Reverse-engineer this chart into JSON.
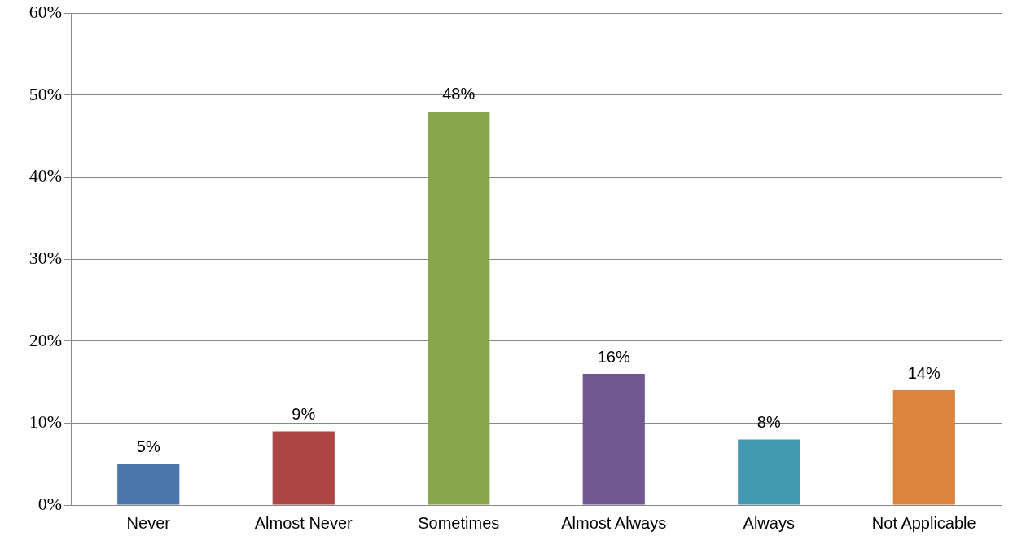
{
  "chart_data": {
    "type": "bar",
    "categories": [
      "Never",
      "Almost Never",
      "Sometimes",
      "Almost Always",
      "Always",
      "Not Applicable"
    ],
    "values": [
      5,
      9,
      48,
      16,
      8,
      14
    ],
    "colors": [
      "#4a76ab",
      "#ab4644",
      "#89a54e",
      "#71588f",
      "#4298af",
      "#db843d"
    ],
    "ylim": [
      0,
      60
    ],
    "yticks": [
      {
        "value": 0,
        "label": "0%"
      },
      {
        "value": 10,
        "label": "10%"
      },
      {
        "value": 20,
        "label": "20%"
      },
      {
        "value": 30,
        "label": "30%"
      },
      {
        "value": 40,
        "label": "40%"
      },
      {
        "value": 50,
        "label": "50%"
      },
      {
        "value": 60,
        "label": "60%"
      }
    ],
    "value_labels": [
      "5%",
      "9%",
      "48%",
      "16%",
      "8%",
      "14%"
    ],
    "grid": "y",
    "legend": false
  }
}
